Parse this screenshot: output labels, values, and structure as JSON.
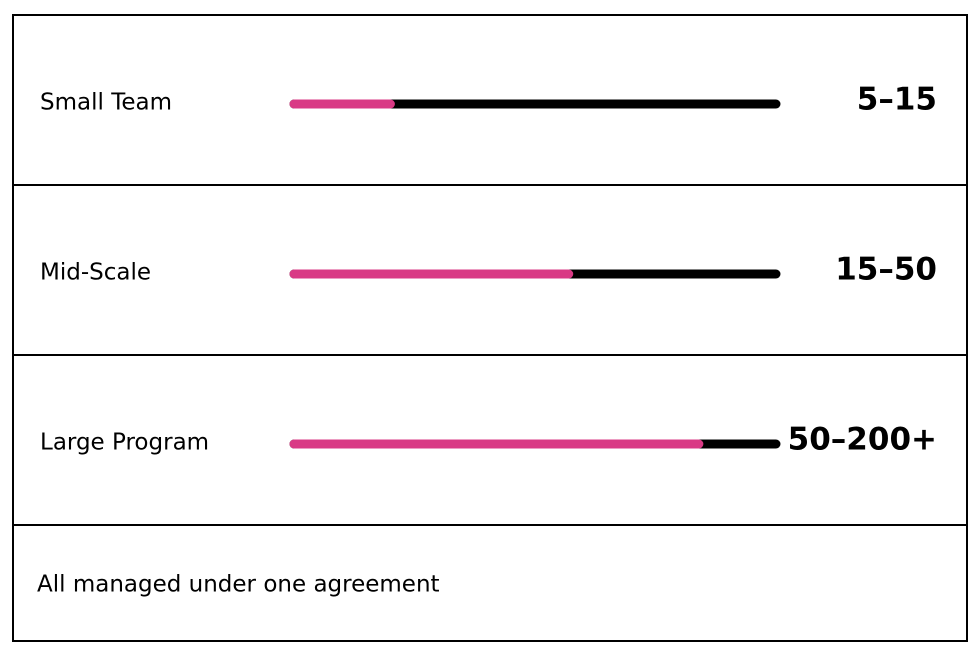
{
  "rows": [
    {
      "label": "Small Team",
      "value": "5–15",
      "fill": 20
    },
    {
      "label": "Mid-Scale",
      "value": "15–50",
      "fill": 57
    },
    {
      "label": "Large Program",
      "value": "50–200+",
      "fill": 84
    }
  ],
  "footer": "All managed under one agreement",
  "colors": {
    "fill": "#d93a85",
    "track": "#000000"
  }
}
